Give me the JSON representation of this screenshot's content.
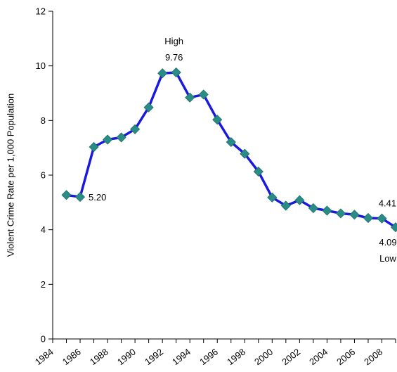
{
  "chart_data": {
    "type": "line",
    "ylabel": "Violent Crime Rate per 1,000 Population",
    "xlabel": "",
    "title": "",
    "xlim": [
      1984,
      2009
    ],
    "ylim": [
      0,
      12
    ],
    "x_ticks": [
      "1984",
      "1986",
      "1988",
      "1990",
      "1992",
      "1994",
      "1996",
      "1998",
      "2000",
      "2002",
      "2004",
      "2006",
      "2008"
    ],
    "y_ticks": [
      "0",
      "2",
      "4",
      "6",
      "8",
      "10",
      "12"
    ],
    "grid": false,
    "legend": "none",
    "line_color": "#1a1adf",
    "marker_color": "#2a8c86",
    "series": [
      {
        "x": [
          1985,
          1986,
          1987,
          1988,
          1989,
          1990,
          1991,
          1992,
          1993,
          1994,
          1995,
          1996,
          1997,
          1998,
          1999,
          2000,
          2001,
          2002,
          2003,
          2004,
          2005,
          2006,
          2007,
          2008,
          2009
        ],
        "values": [
          5.27,
          5.2,
          7.03,
          7.3,
          7.38,
          7.68,
          8.48,
          9.73,
          9.76,
          8.84,
          8.95,
          8.03,
          7.21,
          6.78,
          6.13,
          5.18,
          4.88,
          5.08,
          4.79,
          4.7,
          4.6,
          4.55,
          4.43,
          4.41,
          4.09
        ]
      }
    ],
    "annotations": {
      "high_label": "High",
      "high_value": "9.76",
      "min1986_value": "5.20",
      "end2008_value": "4.41",
      "low_value": "4.09",
      "low_label": "Low"
    }
  }
}
